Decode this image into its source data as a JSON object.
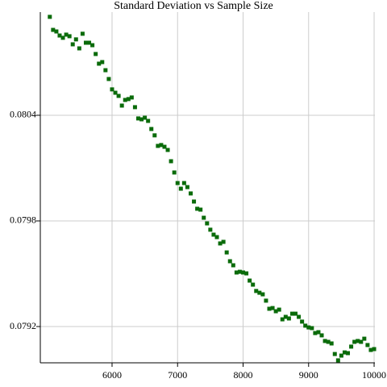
{
  "chart_data": {
    "type": "scatter",
    "title": "Standard Deviation vs Sample Size",
    "x": [
      5050,
      5100,
      5150,
      5200,
      5250,
      5300,
      5350,
      5400,
      5450,
      5500,
      5550,
      5600,
      5650,
      5700,
      5750,
      5800,
      5850,
      5900,
      5950,
      6000,
      6050,
      6100,
      6150,
      6200,
      6250,
      6300,
      6350,
      6400,
      6450,
      6500,
      6550,
      6600,
      6650,
      6700,
      6750,
      6800,
      6850,
      6900,
      6950,
      7000,
      7050,
      7100,
      7150,
      7200,
      7250,
      7300,
      7350,
      7400,
      7450,
      7500,
      7550,
      7600,
      7650,
      7700,
      7750,
      7800,
      7850,
      7900,
      7950,
      8000,
      8050,
      8100,
      8150,
      8200,
      8250,
      8300,
      8350,
      8400,
      8450,
      8500,
      8550,
      8600,
      8650,
      8700,
      8750,
      8800,
      8850,
      8900,
      8950,
      9000,
      9050,
      9100,
      9150,
      9200,
      9250,
      9300,
      9350,
      9400,
      9450,
      9500,
      9550,
      9600,
      9650,
      9700,
      9750,
      9800,
      9850,
      9900,
      9950,
      10000
    ],
    "values": [
      0.080959,
      0.080885,
      0.080876,
      0.080853,
      0.08084,
      0.080858,
      0.080849,
      0.080803,
      0.080831,
      0.08078,
      0.080863,
      0.080812,
      0.080812,
      0.080798,
      0.080748,
      0.080693,
      0.080702,
      0.080656,
      0.080606,
      0.080547,
      0.080528,
      0.08051,
      0.080455,
      0.080487,
      0.080492,
      0.080501,
      0.080446,
      0.080382,
      0.080377,
      0.080386,
      0.080368,
      0.080322,
      0.080286,
      0.080226,
      0.080231,
      0.080221,
      0.080203,
      0.080139,
      0.080075,
      0.080015,
      0.079983,
      0.080015,
      0.079992,
      0.079956,
      0.07991,
      0.079869,
      0.079864,
      0.079818,
      0.079786,
      0.07975,
      0.079722,
      0.079708,
      0.079672,
      0.079681,
      0.079621,
      0.079571,
      0.079548,
      0.079507,
      0.079511,
      0.079507,
      0.079502,
      0.079461,
      0.079438,
      0.079402,
      0.079392,
      0.079383,
      0.079347,
      0.079301,
      0.079305,
      0.079287,
      0.079296,
      0.079241,
      0.079255,
      0.079246,
      0.079273,
      0.079273,
      0.079255,
      0.079228,
      0.079205,
      0.079195,
      0.079191,
      0.079163,
      0.079168,
      0.07915,
      0.079118,
      0.079113,
      0.079104,
      0.079044,
      0.079008,
      0.079035,
      0.079053,
      0.079049,
      0.079086,
      0.079113,
      0.079118,
      0.079113,
      0.079131,
      0.079095,
      0.079067,
      0.079072
    ],
    "color": "#0a6b0a",
    "xlim": [
      4905,
      10012
    ],
    "xticks": [
      6000,
      7000,
      8000,
      9000,
      10000
    ],
    "ylim": [
      0.078994,
      0.080986
    ],
    "yticks": [
      0.0792,
      0.0798,
      0.0804
    ],
    "grid": true
  }
}
